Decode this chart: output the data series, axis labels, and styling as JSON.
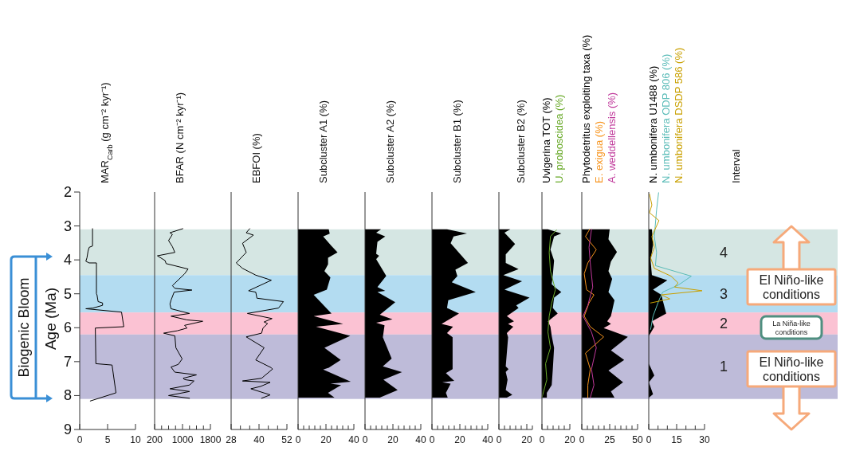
{
  "chart_data": [
    {
      "type": "line",
      "orientation": "horizontal",
      "title": "MAR$_{Carb}$ (g cm⁻² kyr⁻¹)",
      "ylabel": "Age (Ma)",
      "xlim": [
        0,
        10
      ],
      "xticks": [
        0,
        5,
        10
      ],
      "ylim": [
        9,
        2
      ],
      "yticks": [
        2,
        3,
        4,
        5,
        6,
        7,
        8,
        9
      ],
      "annotations": [
        "Biogenic Bloom"
      ],
      "bands": [
        {
          "axis": "y",
          "from": 3.1,
          "to": 4.45,
          "color": "#d5e6e3"
        },
        {
          "axis": "y",
          "from": 4.45,
          "to": 5.55,
          "color": "#b3dcf1"
        },
        {
          "axis": "y",
          "from": 5.55,
          "to": 6.2,
          "color": "#fbc2d3"
        },
        {
          "axis": "y",
          "from": 6.2,
          "to": 8.1,
          "color": "#bebbd9"
        }
      ],
      "series": [
        {
          "color": "#000000",
          "values": [
            2.3,
            2.3,
            1.7,
            1.5,
            1.3,
            1.1,
            1.7,
            3.0,
            3.0,
            3.1,
            3.3,
            4.1,
            4.1,
            2.4,
            1.1,
            7.5,
            7.9,
            2.8,
            2.9,
            5.8,
            6.5,
            1.9
          ],
          "x": [
            3.08,
            3.59,
            3.63,
            3.74,
            3.94,
            4.04,
            4.09,
            4.09,
            5.0,
            5.03,
            5.23,
            5.27,
            5.34,
            5.42,
            5.44,
            5.54,
            5.97,
            6.01,
            7.06,
            7.1,
            7.92,
            8.16
          ]
        }
      ]
    },
    {
      "type": "line",
      "orientation": "horizontal",
      "title": "BFAR (N cm⁻² kyr⁻¹)",
      "tick_labels": "x",
      "xlim": [
        200,
        1800
      ],
      "xticks": [
        200,
        {
          "value": 400,
          "label": null
        },
        {
          "value": 600,
          "label": null
        },
        {
          "value": 800,
          "label": null
        },
        1000,
        {
          "value": 1200,
          "label": null
        },
        {
          "value": 1400,
          "label": null
        },
        {
          "value": 1600,
          "label": null
        },
        1800
      ],
      "ylim": [
        9,
        2
      ],
      "bands": [
        {
          "axis": "y",
          "from": 3.1,
          "to": 4.45,
          "color": "#d5e6e3"
        },
        {
          "axis": "y",
          "from": 4.45,
          "to": 5.55,
          "color": "#b3dcf1"
        },
        {
          "axis": "y",
          "from": 5.55,
          "to": 6.2,
          "color": "#fbc2d3"
        },
        {
          "axis": "y",
          "from": 6.2,
          "to": 8.1,
          "color": "#bebbd9"
        }
      ],
      "series": [
        {
          "color": "#000000",
          "values": [
            1010,
            640,
            710,
            600,
            710,
            780,
            280,
            500,
            530,
            1160,
            1060,
            710,
            780,
            1270,
            760,
            670,
            640,
            670,
            1200,
            670,
            1130,
            1580,
            1060,
            1130,
            850,
            460,
            780,
            810,
            990,
            880,
            670,
            780,
            1400,
            1020,
            1060,
            1330,
            1200,
            640,
            1200,
            600,
            1200
          ],
          "x": [
            3.08,
            3.2,
            3.25,
            3.43,
            3.61,
            3.78,
            3.88,
            4.02,
            4.11,
            4.27,
            4.41,
            4.76,
            4.84,
            4.89,
            4.95,
            5.19,
            5.3,
            5.44,
            5.58,
            5.66,
            5.77,
            5.81,
            5.93,
            6.01,
            6.09,
            6.16,
            6.24,
            6.59,
            6.92,
            7.08,
            7.16,
            7.31,
            7.39,
            7.49,
            7.53,
            7.57,
            7.69,
            7.8,
            7.88,
            8.0,
            8.08
          ]
        }
      ]
    },
    {
      "type": "line",
      "orientation": "horizontal",
      "title": "EBFOI (%)",
      "tick_labels": "x",
      "xlim": [
        28,
        52
      ],
      "xticks": [
        28,
        {
          "value": 32,
          "label": null
        },
        {
          "value": 36,
          "label": null
        },
        40,
        {
          "value": 44,
          "label": null
        },
        {
          "value": 48,
          "label": null
        },
        52
      ],
      "ylim": [
        9,
        2
      ],
      "bands": [
        {
          "axis": "y",
          "from": 3.1,
          "to": 4.45,
          "color": "#d5e6e3"
        },
        {
          "axis": "y",
          "from": 4.45,
          "to": 5.55,
          "color": "#b3dcf1"
        },
        {
          "axis": "y",
          "from": 5.55,
          "to": 6.2,
          "color": "#fbc2d3"
        },
        {
          "axis": "y",
          "from": 6.2,
          "to": 8.1,
          "color": "#bebbd9"
        }
      ],
      "series": [
        {
          "color": "#000000",
          "values": [
            36.0,
            34.5,
            37.6,
            32.9,
            34.5,
            30.2,
            32.9,
            38.6,
            45.3,
            35.5,
            38.6,
            39.1,
            50.5,
            48.4,
            35.0,
            45.6,
            42.2,
            43.7,
            41.7,
            41.1,
            34.5,
            42.2,
            38.6,
            45.3,
            45.8,
            41.1,
            32.9,
            44.8,
            40.7,
            36.5,
            44.8,
            41.1
          ],
          "x": [
            3.08,
            3.2,
            3.27,
            3.51,
            3.78,
            4.09,
            4.25,
            4.45,
            4.6,
            4.91,
            4.95,
            5.13,
            5.23,
            5.42,
            5.58,
            5.73,
            5.83,
            5.88,
            6.01,
            6.16,
            6.27,
            6.59,
            6.95,
            7.18,
            7.22,
            7.49,
            7.57,
            7.61,
            7.73,
            7.8,
            7.98,
            8.08
          ]
        }
      ]
    },
    {
      "type": "area",
      "orientation": "horizontal",
      "title": "Subcluster A1 (%)",
      "tick_labels": "x",
      "xlim": [
        0,
        40
      ],
      "xticks": [
        0,
        {
          "value": 4,
          "label": null
        },
        {
          "value": 8,
          "label": null
        },
        {
          "value": 12,
          "label": null
        },
        {
          "value": 16,
          "label": null
        },
        20,
        {
          "value": 24,
          "label": null
        },
        {
          "value": 28,
          "label": null
        },
        {
          "value": 32,
          "label": null
        },
        {
          "value": 36,
          "label": null
        },
        40
      ],
      "ylim": [
        9,
        2
      ],
      "bands": [
        {
          "axis": "y",
          "from": 3.1,
          "to": 4.45,
          "color": "#d5e6e3"
        },
        {
          "axis": "y",
          "from": 4.45,
          "to": 5.55,
          "color": "#b3dcf1"
        },
        {
          "axis": "y",
          "from": 5.55,
          "to": 6.2,
          "color": "#fbc2d3"
        },
        {
          "axis": "y",
          "from": 6.2,
          "to": 8.1,
          "color": "#bebbd9"
        }
      ],
      "series": [
        {
          "color": "#000000",
          "values": [
            22,
            22.7,
            18,
            24.0,
            28.3,
            21.5,
            21.5,
            18.9,
            23.2,
            20.6,
            11.2,
            24.0,
            11.2,
            32.3,
            12.9,
            37.4,
            18.9,
            30.6,
            22,
            18,
            37.8,
            23.2,
            30.9,
            21.5,
            26.1
          ],
          "x": [
            3.1,
            3.23,
            3.31,
            3.59,
            3.78,
            3.94,
            4.13,
            4.33,
            4.52,
            4.88,
            5.03,
            5.58,
            5.66,
            5.89,
            5.97,
            6.24,
            6.59,
            6.95,
            7.18,
            7.23,
            7.59,
            7.65,
            7.69,
            7.92,
            8.06
          ]
        }
      ]
    },
    {
      "type": "area",
      "orientation": "horizontal",
      "title": "Subcluster A2 (%)",
      "tick_labels": "x",
      "xlim": [
        0,
        40
      ],
      "xticks": [
        0,
        {
          "value": 4,
          "label": null
        },
        {
          "value": 8,
          "label": null
        },
        {
          "value": 12,
          "label": null
        },
        {
          "value": 16,
          "label": null
        },
        20,
        {
          "value": 24,
          "label": null
        },
        {
          "value": 28,
          "label": null
        },
        {
          "value": 32,
          "label": null
        },
        {
          "value": 36,
          "label": null
        },
        40
      ],
      "ylim": [
        9,
        2
      ],
      "bands": [
        {
          "axis": "y",
          "from": 3.1,
          "to": 4.45,
          "color": "#d5e6e3"
        },
        {
          "axis": "y",
          "from": 4.45,
          "to": 5.55,
          "color": "#b3dcf1"
        },
        {
          "axis": "y",
          "from": 5.55,
          "to": 6.2,
          "color": "#fbc2d3"
        },
        {
          "axis": "y",
          "from": 6.2,
          "to": 8.1,
          "color": "#bebbd9"
        }
      ],
      "series": [
        {
          "color": "#000000",
          "values": [
            11.5,
            8.0,
            14.5,
            8.9,
            8.0,
            10.1,
            8.0,
            15.2,
            8.9,
            14.5,
            8.9,
            21.7,
            10.6,
            19.7,
            8.0,
            14.0,
            12.8,
            19.1,
            12.8,
            26.5,
            13.2,
            23.4,
            10.6
          ],
          "x": [
            3.1,
            3.2,
            3.31,
            3.47,
            3.82,
            3.88,
            3.98,
            4.47,
            4.8,
            4.91,
            4.95,
            5.25,
            5.62,
            5.75,
            5.85,
            5.93,
            6.28,
            6.91,
            7.14,
            7.31,
            7.53,
            7.84,
            8.06
          ]
        }
      ]
    },
    {
      "type": "area",
      "orientation": "horizontal",
      "title": "Subcluster B1 (%)",
      "tick_labels": "x",
      "xlim": [
        0,
        40
      ],
      "xticks": [
        0,
        {
          "value": 4,
          "label": null
        },
        {
          "value": 8,
          "label": null
        },
        {
          "value": 12,
          "label": null
        },
        {
          "value": 16,
          "label": null
        },
        20,
        {
          "value": 24,
          "label": null
        },
        {
          "value": 28,
          "label": null
        },
        {
          "value": 32,
          "label": null
        },
        {
          "value": 36,
          "label": null
        },
        40
      ],
      "ylim": [
        9,
        2
      ],
      "bands": [
        {
          "axis": "y",
          "from": 3.1,
          "to": 4.45,
          "color": "#d5e6e3"
        },
        {
          "axis": "y",
          "from": 4.45,
          "to": 5.55,
          "color": "#b3dcf1"
        },
        {
          "axis": "y",
          "from": 5.55,
          "to": 6.2,
          "color": "#fbc2d3"
        },
        {
          "axis": "y",
          "from": 6.2,
          "to": 8.1,
          "color": "#bebbd9"
        }
      ],
      "series": [
        {
          "color": "#000000",
          "values": [
            10.8,
            25.1,
            15.5,
            13.4,
            25.8,
            16.8,
            18.2,
            14.2,
            31.4,
            11.7,
            10.8,
            19.4,
            13.4,
            6.9,
            15.1,
            10.8,
            14.8,
            14.8,
            10.0,
            16.0,
            7.4,
            13.4,
            10.0,
            11.3
          ],
          "x": [
            3.1,
            3.22,
            3.31,
            3.51,
            4.09,
            4.29,
            4.48,
            4.66,
            4.95,
            5.19,
            5.42,
            5.58,
            5.73,
            5.89,
            5.97,
            6.16,
            6.28,
            7.22,
            7.34,
            7.57,
            7.61,
            7.65,
            7.92,
            8.06
          ]
        }
      ]
    },
    {
      "type": "area",
      "orientation": "horizontal",
      "title": "Subcluster B2 (%)",
      "tick_labels": "x",
      "xlim": [
        0,
        24
      ],
      "xticks": [
        0,
        {
          "value": 4,
          "label": null
        },
        {
          "value": 8,
          "label": null
        },
        {
          "value": 12,
          "label": null
        },
        {
          "value": 16,
          "label": null
        },
        20,
        {
          "value": 24,
          "label": null
        }
      ],
      "ylim": [
        9,
        2
      ],
      "bands": [
        {
          "axis": "y",
          "from": 3.1,
          "to": 4.45,
          "color": "#d5e6e3"
        },
        {
          "axis": "y",
          "from": 4.45,
          "to": 5.55,
          "color": "#b3dcf1"
        },
        {
          "axis": "y",
          "from": 5.55,
          "to": 6.2,
          "color": "#fbc2d3"
        },
        {
          "axis": "y",
          "from": 6.2,
          "to": 8.1,
          "color": "#bebbd9"
        }
      ],
      "series": [
        {
          "color": "#000000",
          "values": [
            8.2,
            4.0,
            11.6,
            4.9,
            4.9,
            14.1,
            3.2,
            16.6,
            4.0,
            22.0,
            12.4,
            14.1,
            5.7,
            10.8,
            6.6,
            10.3,
            5.7,
            6.6,
            4.9,
            6.9,
            4.9,
            6.2,
            4.9,
            9.6,
            5.7
          ],
          "x": [
            3.1,
            3.2,
            3.53,
            3.84,
            4.09,
            4.27,
            4.45,
            4.63,
            4.88,
            5.11,
            5.34,
            5.42,
            5.66,
            5.81,
            5.89,
            5.97,
            6.16,
            6.28,
            7.14,
            7.22,
            7.3,
            7.53,
            7.84,
            7.98,
            8.06
          ]
        }
      ]
    },
    {
      "type": "area",
      "orientation": "horizontal",
      "legend": "top",
      "tick_labels": "x",
      "xlim": [
        0,
        20
      ],
      "xticks": [
        0,
        {
          "value": 4,
          "label": null
        },
        {
          "value": 8,
          "label": null
        },
        {
          "value": 12,
          "label": null
        },
        {
          "value": 16,
          "label": null
        },
        20
      ],
      "ylim": [
        9,
        2
      ],
      "bands": [
        {
          "axis": "y",
          "from": 3.1,
          "to": 4.45,
          "color": "#d5e6e3"
        },
        {
          "axis": "y",
          "from": 4.45,
          "to": 5.55,
          "color": "#b3dcf1"
        },
        {
          "axis": "y",
          "from": 5.55,
          "to": 6.2,
          "color": "#fbc2d3"
        },
        {
          "axis": "y",
          "from": 6.2,
          "to": 8.1,
          "color": "#bebbd9"
        }
      ],
      "series": [
        {
          "name": "Uvigerina TOT (%)",
          "color": "#000000",
          "values": [
            4.3,
            13.9,
            8.7,
            6.1,
            8.7,
            7.8,
            7.0,
            10.4,
            13.9,
            8.7,
            7.8,
            11.3,
            4.3,
            6.1,
            7.0,
            8.7,
            7.8,
            7.0,
            3.5,
            3.5
          ],
          "x": [
            3.1,
            3.22,
            3.31,
            3.7,
            4.02,
            4.45,
            4.72,
            4.84,
            4.95,
            5.11,
            5.42,
            5.58,
            5.81,
            5.97,
            6.24,
            6.59,
            7.22,
            7.69,
            7.92,
            8.06
          ]
        },
        {
          "name": "U. proboscidea (%)",
          "type": "line",
          "color": "#6aaa2a",
          "values": [
            10.4,
            6.1,
            5.2,
            6.1,
            9.6,
            7.0,
            5.2,
            4.3,
            6.1,
            2.6,
            3.5,
            0
          ],
          "x": [
            3.12,
            3.31,
            3.78,
            4.33,
            4.88,
            5.27,
            5.66,
            6.13,
            6.59,
            7.06,
            7.53,
            8.06
          ]
        }
      ]
    },
    {
      "type": "area",
      "orientation": "horizontal",
      "legend": "top",
      "tick_labels": "x",
      "xlim": [
        0,
        50
      ],
      "xticks": [
        0,
        {
          "value": 5,
          "label": null
        },
        {
          "value": 10,
          "label": null
        },
        {
          "value": 15,
          "label": null
        },
        {
          "value": 20,
          "label": null
        },
        25,
        {
          "value": 30,
          "label": null
        },
        {
          "value": 35,
          "label": null
        },
        {
          "value": 40,
          "label": null
        },
        {
          "value": 45,
          "label": null
        },
        50
      ],
      "ylim": [
        9,
        2
      ],
      "bands": [
        {
          "axis": "y",
          "from": 3.1,
          "to": 4.45,
          "color": "#d5e6e3"
        },
        {
          "axis": "y",
          "from": 4.45,
          "to": 5.55,
          "color": "#b3dcf1"
        },
        {
          "axis": "y",
          "from": 5.55,
          "to": 6.2,
          "color": "#fbc2d3"
        },
        {
          "axis": "y",
          "from": 6.2,
          "to": 8.1,
          "color": "#bebbd9"
        }
      ],
      "series": [
        {
          "name": "Phytodetritus exploiting taxa (%)",
          "color": "#000000",
          "values": [
            25,
            23.9,
            31.5,
            26.1,
            23.9,
            27.2,
            23.9,
            29.3,
            27.2,
            26.1,
            22.8,
            26.1,
            19.6,
            41.3,
            26.1,
            38.0,
            23.9,
            37.0,
            26.1,
            29.3
          ],
          "x": [
            3.1,
            3.39,
            3.77,
            4.05,
            4.33,
            4.56,
            4.95,
            5.19,
            5.5,
            5.66,
            5.81,
            5.89,
            6.01,
            6.27,
            6.67,
            6.95,
            7.26,
            7.61,
            7.88,
            8.06
          ]
        },
        {
          "name": "E. exigua (%)",
          "type": "line",
          "color": "#f7941d",
          "values": [
            7.0,
            3.3,
            13.0,
            5.4,
            2.2,
            4.3,
            10.9,
            6.5,
            2.2,
            7.6,
            19.6,
            3.3,
            7.6,
            5.4,
            5.4
          ],
          "x": [
            3.1,
            3.31,
            3.7,
            4.09,
            4.41,
            4.88,
            5.03,
            5.27,
            5.66,
            5.97,
            6.27,
            6.75,
            7.22,
            7.69,
            8.06
          ]
        },
        {
          "name": "A. weddellensis (%)",
          "type": "line",
          "color": "#c0399b",
          "values": [
            8.7,
            6.5,
            7.6,
            9.8,
            5.4,
            1.1,
            8.7,
            13.0,
            8.7,
            10.9,
            7.6
          ],
          "x": [
            3.1,
            3.63,
            4.09,
            4.8,
            5.34,
            5.66,
            6.13,
            6.59,
            7.22,
            7.69,
            8.06
          ]
        }
      ]
    },
    {
      "type": "area",
      "orientation": "horizontal",
      "legend": "top",
      "tick_labels": "x",
      "xlim": [
        0,
        30
      ],
      "xticks": [
        0,
        {
          "value": 5,
          "label": null
        },
        {
          "value": 10,
          "label": null
        },
        15,
        {
          "value": 20,
          "label": null
        },
        {
          "value": 25,
          "label": null
        },
        30
      ],
      "ylim": [
        9,
        2
      ],
      "bands": [
        {
          "axis": "y",
          "from": 3.1,
          "to": 4.45,
          "color": "#d5e6e3",
          "label": "4"
        },
        {
          "axis": "y",
          "from": 4.45,
          "to": 5.55,
          "color": "#b3dcf1",
          "label": "3"
        },
        {
          "axis": "y",
          "from": 5.55,
          "to": 6.2,
          "color": "#fbc2d3",
          "label": "2"
        },
        {
          "axis": "y",
          "from": 6.2,
          "to": 8.1,
          "color": "#bebbd9",
          "label": "1"
        }
      ],
      "annotations": [
        "Interval",
        "El Niño-like conditions",
        "La Niña-like conditions",
        "El Niño-like conditions"
      ],
      "series": [
        {
          "name": "N. umbonifera U1488 (%)",
          "color": "#000000",
          "values": [
            1.7,
            2.3,
            1.0,
            1.7,
            10.0,
            2.3,
            6.8,
            7.5,
            9.4,
            1.7,
            3.0,
            0.1,
            0.1,
            3.0,
            0.1,
            2.3,
            0.1
          ],
          "x": [
            3.1,
            3.55,
            4.02,
            4.45,
            4.6,
            4.88,
            5.03,
            5.19,
            5.58,
            5.81,
            5.97,
            6.24,
            7.06,
            7.41,
            7.61,
            7.96,
            8.06
          ]
        },
        {
          "name": "N. umbonifera ODP 806 (%)",
          "type": "line",
          "color": "#5bbcb8",
          "values": [
            5.3,
            4.2,
            3.0,
            4.2,
            3.6,
            22.9,
            16.0,
            7.5,
            5.5,
            2.3,
            1.0
          ],
          "x": [
            2.02,
            2.53,
            3.31,
            3.78,
            4.17,
            4.48,
            4.74,
            4.95,
            5.19,
            5.66,
            6.05
          ]
        },
        {
          "name": "N. umbonifera DSDP 586 (%)",
          "type": "line",
          "color": "#c9a000",
          "values": [
            0.4,
            1.7,
            0.4,
            5.5,
            1.7,
            3.0,
            1.0,
            3.0,
            12.0,
            15.8,
            13.9,
            28.7,
            6.8,
            11.3,
            1.0
          ],
          "x": [
            2.06,
            2.38,
            2.61,
            2.84,
            3.31,
            3.63,
            3.94,
            4.25,
            4.48,
            4.68,
            4.8,
            4.91,
            5.03,
            5.15,
            5.27
          ]
        }
      ]
    }
  ]
}
